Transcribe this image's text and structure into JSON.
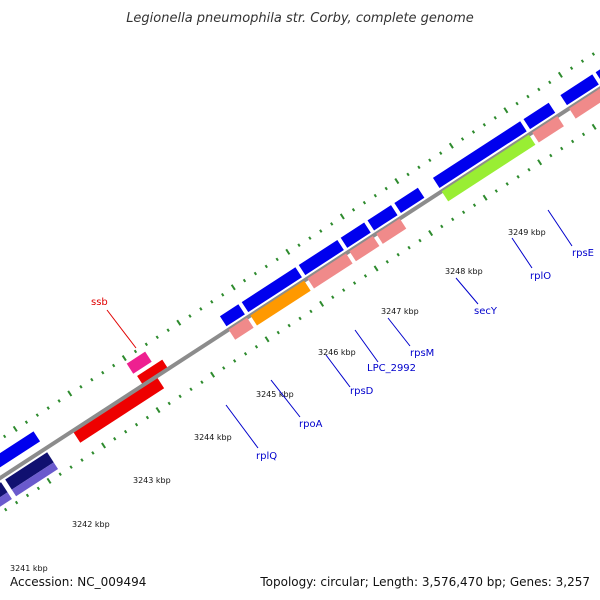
{
  "title": "Legionella pneumophila str. Corby, complete genome",
  "footer": {
    "accession": "Accession: NC_009494",
    "summary": "Topology: circular; Length: 3,576,470 bp; Genes: 3,257"
  },
  "scale": {
    "unit": "kbp",
    "ticks": [
      "3241 kbp",
      "3242 kbp",
      "3243 kbp",
      "3244 kbp",
      "3245 kbp",
      "3246 kbp",
      "3247 kbp",
      "3248 kbp",
      "3249 kbp"
    ]
  },
  "gene_labels": [
    {
      "text": "ssb",
      "color": "#e00000"
    },
    {
      "text": "rplQ",
      "color": "#0000cc"
    },
    {
      "text": "rpoA",
      "color": "#0000cc"
    },
    {
      "text": "rpsD",
      "color": "#0000cc"
    },
    {
      "text": "LPC_2992",
      "color": "#0000cc"
    },
    {
      "text": "rpsM",
      "color": "#0000cc"
    },
    {
      "text": "secY",
      "color": "#0000cc"
    },
    {
      "text": "rplO",
      "color": "#0000cc"
    },
    {
      "text": "rpsE",
      "color": "#0000cc"
    }
  ],
  "colors": {
    "backbone": "#8c8c8c",
    "cds_forward": "#0000ee",
    "gene_reverse": "#f08a8a",
    "ssb": "#ee0000",
    "ssb_small": "#ee2090",
    "rpoA": "#ff9900",
    "secY": "#99ee33",
    "dark_blue": "#101070",
    "tick": "#2e8b2e"
  }
}
